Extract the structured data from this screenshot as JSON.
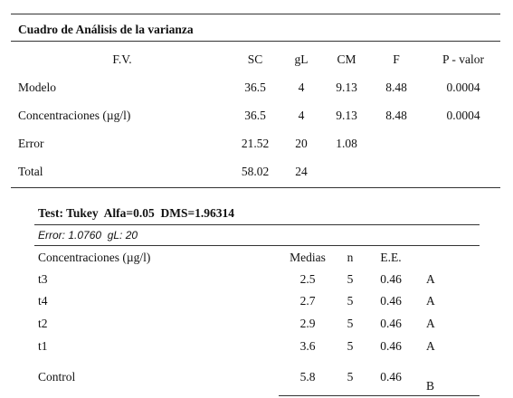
{
  "anova": {
    "title": "Cuadro de Análisis de la varianza",
    "header": [
      "F.V.",
      "SC",
      "gL",
      "CM",
      "F",
      "P - valor"
    ],
    "rows": [
      [
        "Modelo",
        "36.5",
        "4",
        "9.13",
        "8.48",
        "0.0004"
      ],
      [
        "Concentraciones (µg/l)",
        "36.5",
        "4",
        "9.13",
        "8.48",
        "0.0004"
      ],
      [
        "Error",
        "21.52",
        "20",
        "1.08"
      ],
      [
        "Total",
        "58.02",
        "24"
      ]
    ]
  },
  "tukey": {
    "title": "Test: Tukey  Alfa=0.05  DMS=1.96314",
    "subtitle": "Error: 1.0760  gL: 20",
    "header": [
      "Concentraciones (µg/l)",
      "Medias",
      "n",
      "E.E."
    ],
    "rows": [
      [
        "t3",
        "2.5",
        "5",
        "0.46",
        "A"
      ],
      [
        "t4",
        "2.7",
        "5",
        "0.46",
        "A"
      ],
      [
        "t2",
        "2.9",
        "5",
        "0.46",
        "A"
      ],
      [
        "t1",
        "3.6",
        "5",
        "0.46",
        "A"
      ],
      [
        "Control",
        "5.8",
        "5",
        "0.46",
        "B"
      ]
    ]
  }
}
